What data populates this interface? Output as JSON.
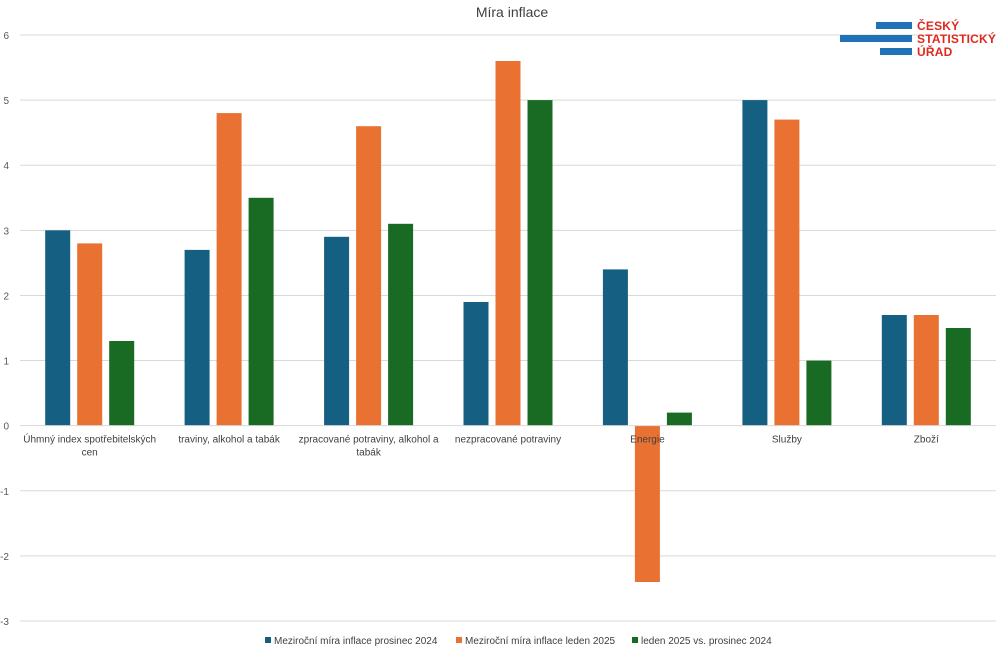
{
  "chart_data": {
    "type": "bar",
    "title": "Míra inflace",
    "categories": [
      [
        "Úhmný index spotřebitelských",
        "cen"
      ],
      [
        "traviny, alkohol a tabák"
      ],
      [
        "zpracované potraviny, alkohol a",
        "tabák"
      ],
      [
        "nezpracované potraviny"
      ],
      [
        "Energie"
      ],
      [
        "Služby"
      ],
      [
        "Zboží"
      ]
    ],
    "series": [
      {
        "name": "Meziroční míra inflace prosinec 2024",
        "color": "#156082",
        "values": [
          3.0,
          2.7,
          2.9,
          1.9,
          2.4,
          5.0,
          1.7
        ]
      },
      {
        "name": "Meziroční míra inflace leden 2025",
        "color": "#e97132",
        "values": [
          2.8,
          4.8,
          4.6,
          5.6,
          -2.4,
          4.7,
          1.7
        ]
      },
      {
        "name": "leden 2025 vs. prosinec 2024",
        "color": "#196b24",
        "values": [
          1.3,
          3.5,
          3.1,
          5.0,
          0.2,
          1.0,
          1.5
        ]
      }
    ],
    "ylim": [
      -3,
      6
    ],
    "yticks": [
      -3,
      -2,
      -1,
      0,
      1,
      2,
      3,
      4,
      5,
      6
    ],
    "grid": true,
    "legend": "bottom"
  },
  "logo": {
    "lines": [
      "ČESKÝ",
      "STATISTICKÝ",
      "ÚŘAD"
    ],
    "bar_color": "#1f72b8",
    "text_color": "#e0281c"
  }
}
